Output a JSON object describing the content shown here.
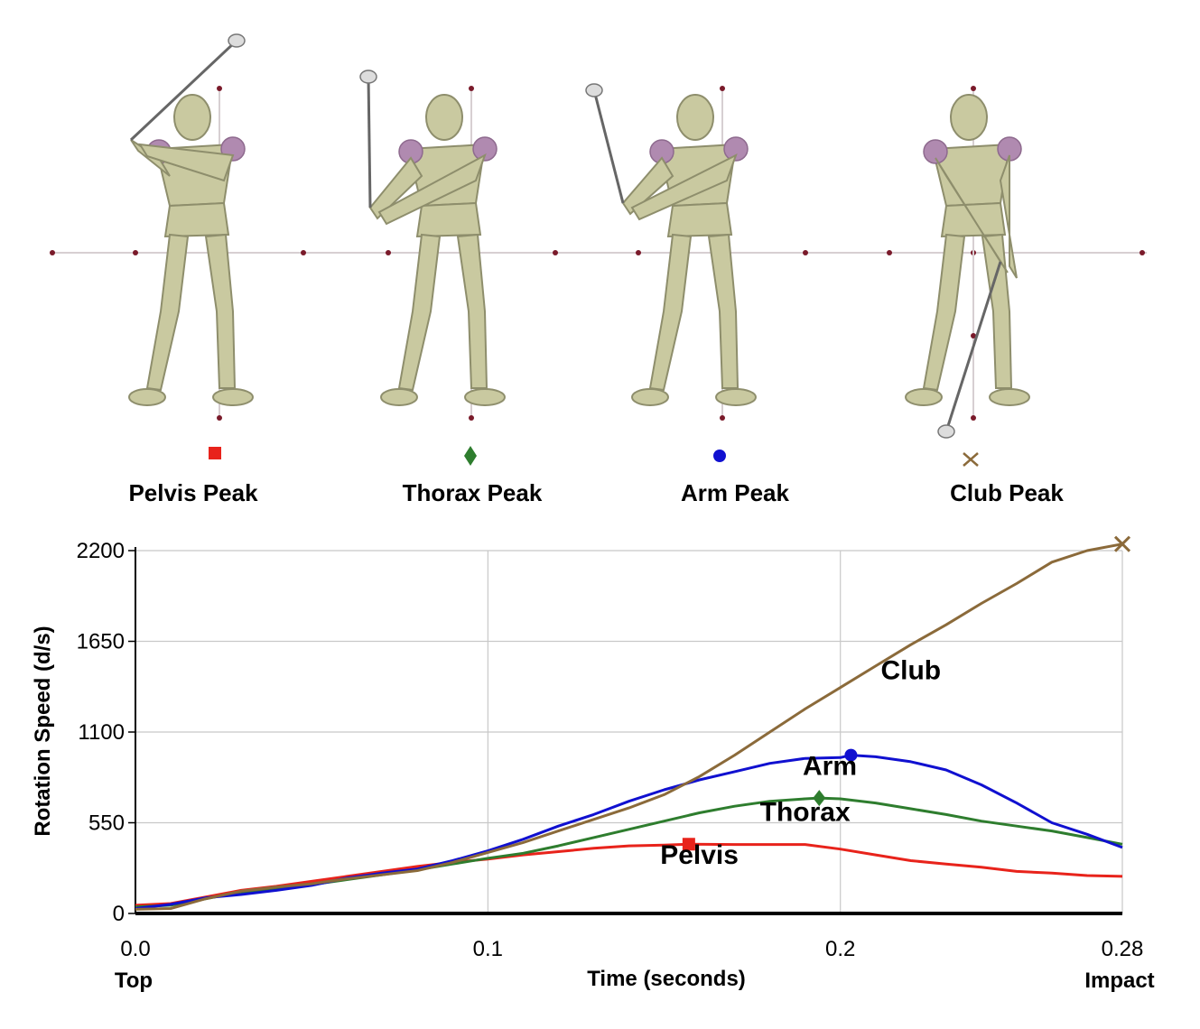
{
  "peaks": [
    {
      "label": "Pelvis Peak",
      "marker": "square",
      "color": "#e8231b"
    },
    {
      "label": "Thorax Peak",
      "marker": "diamond",
      "color": "#2e7d2e"
    },
    {
      "label": "Arm Peak",
      "marker": "circle",
      "color": "#1010d0"
    },
    {
      "label": "Club Peak",
      "marker": "cross",
      "color": "#8b6a3a"
    }
  ],
  "chart_data": {
    "type": "line",
    "title": "",
    "xlabel": "Time (seconds)",
    "ylabel": "Rotation Speed (d/s)",
    "xlim": [
      0,
      0.28
    ],
    "ylim": [
      0,
      2200
    ],
    "x_ticks": [
      {
        "value": 0,
        "label": "0.0"
      },
      {
        "value": 0.1,
        "label": "0.1"
      },
      {
        "value": 0.2,
        "label": "0.2"
      },
      {
        "value": 0.28,
        "label": "0.28"
      }
    ],
    "y_ticks": [
      0,
      550,
      1100,
      1650,
      2200
    ],
    "x_end_labels": {
      "start": "Top",
      "end": "Impact"
    },
    "grid": true,
    "series": [
      {
        "name": "Pelvis",
        "color": "#e8231b",
        "marker": "square",
        "peak": {
          "x": 0.157,
          "y": 420
        },
        "label_at": {
          "x": 0.16,
          "y": 300
        },
        "x": [
          0,
          0.01,
          0.02,
          0.03,
          0.04,
          0.05,
          0.06,
          0.07,
          0.08,
          0.09,
          0.1,
          0.11,
          0.12,
          0.13,
          0.14,
          0.15,
          0.157,
          0.17,
          0.18,
          0.19,
          0.2,
          0.21,
          0.22,
          0.23,
          0.24,
          0.25,
          0.26,
          0.27,
          0.28
        ],
        "values": [
          50,
          60,
          100,
          140,
          165,
          195,
          225,
          255,
          285,
          310,
          330,
          355,
          375,
          395,
          410,
          415,
          420,
          418,
          418,
          418,
          390,
          355,
          320,
          300,
          280,
          255,
          245,
          230,
          225
        ]
      },
      {
        "name": "Thorax",
        "color": "#2e7d2e",
        "marker": "diamond",
        "peak": {
          "x": 0.194,
          "y": 700
        },
        "label_at": {
          "x": 0.19,
          "y": 560
        },
        "x": [
          0,
          0.01,
          0.02,
          0.03,
          0.04,
          0.05,
          0.06,
          0.07,
          0.08,
          0.09,
          0.1,
          0.11,
          0.12,
          0.13,
          0.14,
          0.15,
          0.16,
          0.17,
          0.18,
          0.19,
          0.194,
          0.2,
          0.21,
          0.22,
          0.23,
          0.24,
          0.25,
          0.26,
          0.27,
          0.28
        ],
        "values": [
          40,
          50,
          90,
          130,
          150,
          175,
          205,
          235,
          265,
          300,
          335,
          365,
          410,
          460,
          510,
          560,
          610,
          650,
          680,
          695,
          700,
          695,
          670,
          635,
          600,
          560,
          530,
          500,
          460,
          420
        ]
      },
      {
        "name": "Arm",
        "color": "#1010d0",
        "marker": "circle",
        "peak": {
          "x": 0.203,
          "y": 960
        },
        "label_at": {
          "x": 0.197,
          "y": 840
        },
        "x": [
          0,
          0.01,
          0.02,
          0.03,
          0.04,
          0.05,
          0.06,
          0.07,
          0.08,
          0.09,
          0.1,
          0.11,
          0.12,
          0.13,
          0.14,
          0.15,
          0.16,
          0.17,
          0.18,
          0.19,
          0.2,
          0.203,
          0.21,
          0.22,
          0.23,
          0.24,
          0.25,
          0.26,
          0.27,
          0.28
        ],
        "values": [
          30,
          55,
          95,
          115,
          140,
          170,
          215,
          245,
          270,
          320,
          380,
          450,
          530,
          600,
          680,
          750,
          810,
          860,
          910,
          940,
          945,
          960,
          950,
          920,
          870,
          780,
          670,
          550,
          480,
          400
        ]
      },
      {
        "name": "Club",
        "color": "#8b6a3a",
        "marker": "cross",
        "peak": {
          "x": 0.28,
          "y": 2240
        },
        "label_at": {
          "x": 0.22,
          "y": 1420
        },
        "x": [
          0,
          0.01,
          0.02,
          0.03,
          0.04,
          0.05,
          0.06,
          0.07,
          0.08,
          0.09,
          0.1,
          0.11,
          0.12,
          0.13,
          0.14,
          0.15,
          0.16,
          0.17,
          0.18,
          0.19,
          0.2,
          0.21,
          0.22,
          0.23,
          0.24,
          0.25,
          0.26,
          0.27,
          0.28
        ],
        "values": [
          25,
          30,
          90,
          135,
          160,
          180,
          210,
          235,
          260,
          310,
          370,
          430,
          500,
          570,
          640,
          720,
          830,
          960,
          1100,
          1240,
          1370,
          1500,
          1630,
          1750,
          1880,
          2000,
          2130,
          2200,
          2240
        ]
      }
    ]
  }
}
